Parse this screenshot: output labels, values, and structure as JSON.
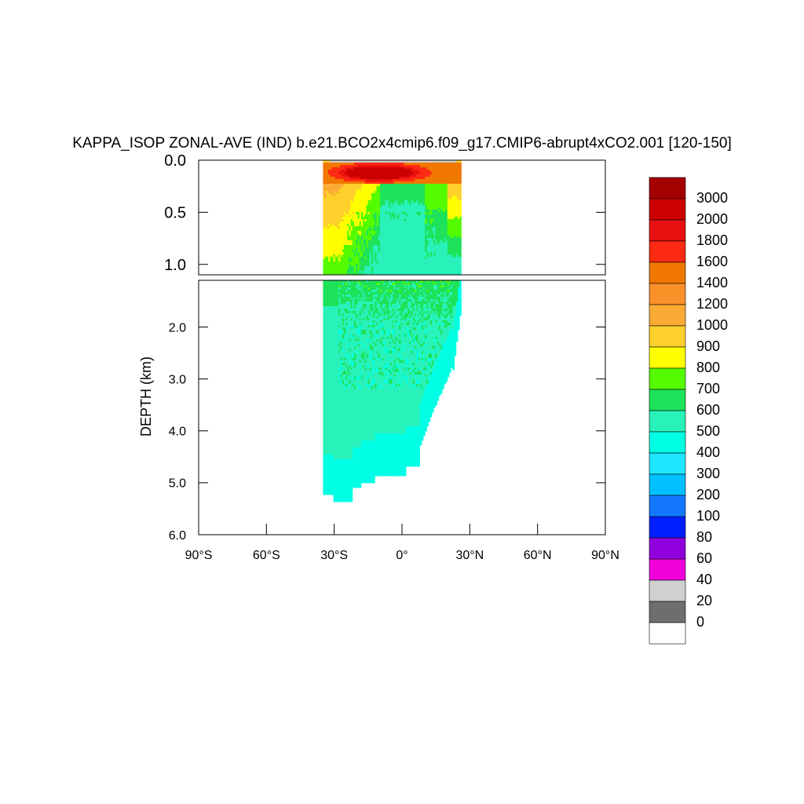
{
  "chart_data": {
    "type": "heatmap",
    "title": "KAPPA_ISOP ZONAL-AVE (IND) b.e21.BCO2x4cmip6.f09_g17.CMIP6-abrupt4xCO2.001 [120-150]",
    "xlabel": "",
    "ylabel": "DEPTH (km)",
    "x_ticks": [
      "90°S",
      "60°S",
      "30°S",
      "0°",
      "30°N",
      "60°N",
      "90°N"
    ],
    "x_tick_values": [
      -90,
      -60,
      -30,
      0,
      30,
      60,
      90
    ],
    "xlim": [
      -90,
      90
    ],
    "upper_panel": {
      "ylim": [
        0.0,
        1.1
      ],
      "y_ticks": [
        "0.0",
        "0.5",
        "1.0"
      ],
      "y_tick_values": [
        0.0,
        0.5,
        1.0
      ]
    },
    "lower_panel": {
      "ylim": [
        1.1,
        6.0
      ],
      "y_ticks": [
        "2.0",
        "3.0",
        "4.0",
        "5.0",
        "6.0"
      ],
      "y_tick_values": [
        2.0,
        3.0,
        4.0,
        5.0,
        6.0
      ]
    },
    "y_axis_inverted": true,
    "colorbar": {
      "levels": [
        "3000",
        "2000",
        "1800",
        "1600",
        "1400",
        "1200",
        "1000",
        "900",
        "800",
        "700",
        "600",
        "500",
        "400",
        "300",
        "200",
        "100",
        "80",
        "60",
        "40",
        "20",
        "0"
      ],
      "colors": [
        "#a50000",
        "#cc0000",
        "#e81010",
        "#ff2a12",
        "#f07800",
        "#fa9028",
        "#fbaa36",
        "#fed02c",
        "#ffff00",
        "#55fc00",
        "#1ee25a",
        "#28f2ba",
        "#00ffe4",
        "#1ee6ff",
        "#00c0ff",
        "#1478ff",
        "#0020ff",
        "#9000dd",
        "#f200dc",
        "#d0d0d0",
        "#6e6e6e",
        "#ffffff"
      ]
    },
    "field": {
      "description_free": true,
      "ocean_lat_range": [
        -35,
        26
      ],
      "surface_max": 3000,
      "core_value": 550,
      "deep_value": 450
    }
  }
}
